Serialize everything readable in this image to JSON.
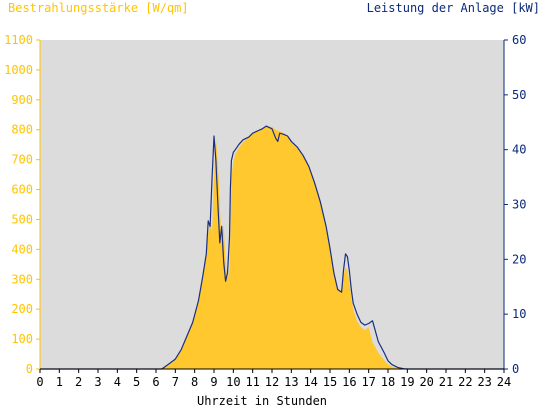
{
  "chart_data": {
    "type": "area",
    "title_left": "Bestrahlungsstärke [W/qm]",
    "title_right": "Leistung der Anlage [kW]",
    "xlabel": "Uhrzeit in Stunden",
    "grid": false,
    "x_ticks": [
      "0",
      "1",
      "2",
      "3",
      "4",
      "5",
      "6",
      "7",
      "8",
      "9",
      "10",
      "11",
      "12",
      "13",
      "14",
      "15",
      "16",
      "17",
      "18",
      "19",
      "20",
      "21",
      "22",
      "23",
      "24"
    ],
    "y_left_ticks": [
      "0",
      "100",
      "200",
      "300",
      "400",
      "500",
      "600",
      "700",
      "800",
      "900",
      "1000",
      "1100"
    ],
    "y_right_ticks": [
      "0",
      "10",
      "20",
      "30",
      "40",
      "50",
      "60"
    ],
    "ylim_left": [
      0,
      1100
    ],
    "ylim_right": [
      0,
      60
    ],
    "xlim": [
      0,
      24
    ],
    "colors": {
      "plot_bg": "#DCDCDC",
      "irradiance_fill": "#FFC82E",
      "power_line": "#1A2F7F",
      "left_axis": "#FFC400",
      "right_axis": "#0B2A7A"
    },
    "series": [
      {
        "axis": "left",
        "kind": "area",
        "x": [
          6.3,
          6.7,
          7.0,
          7.3,
          7.6,
          7.9,
          8.2,
          8.4,
          8.6,
          8.7,
          8.8,
          8.9,
          9.0,
          9.1,
          9.2,
          9.3,
          9.4,
          9.5,
          9.6,
          9.7,
          9.8,
          9.85,
          9.9,
          10.0,
          10.1,
          10.3,
          10.5,
          10.8,
          11.0,
          11.3,
          11.5,
          11.7,
          12.0,
          12.2,
          12.4,
          12.6,
          12.8,
          13.0,
          13.3,
          13.6,
          13.9,
          14.2,
          14.5,
          14.8,
          15.0,
          15.2,
          15.4,
          15.6,
          15.7,
          15.8,
          15.9,
          16.0,
          16.1,
          16.2,
          16.4,
          16.6,
          16.8,
          17.0,
          17.2,
          17.5,
          17.8,
          18.0,
          18.2,
          18.5,
          18.8,
          19.0,
          19.2
        ],
        "values": [
          0,
          15,
          30,
          60,
          110,
          160,
          230,
          300,
          370,
          450,
          500,
          460,
          640,
          770,
          690,
          550,
          420,
          480,
          360,
          300,
          330,
          450,
          640,
          690,
          720,
          740,
          760,
          775,
          790,
          800,
          805,
          810,
          810,
          800,
          795,
          790,
          775,
          760,
          740,
          710,
          680,
          630,
          560,
          480,
          400,
          320,
          270,
          260,
          310,
          340,
          330,
          290,
          240,
          200,
          160,
          140,
          130,
          140,
          90,
          55,
          30,
          15,
          8,
          3,
          1,
          0,
          0
        ]
      },
      {
        "axis": "right",
        "kind": "line",
        "x": [
          0,
          6.3,
          6.7,
          7.0,
          7.3,
          7.6,
          7.9,
          8.2,
          8.4,
          8.6,
          8.7,
          8.8,
          8.9,
          9.0,
          9.1,
          9.2,
          9.3,
          9.4,
          9.5,
          9.6,
          9.7,
          9.8,
          9.85,
          9.9,
          10.0,
          10.1,
          10.3,
          10.5,
          10.8,
          11.0,
          11.3,
          11.5,
          11.7,
          12.0,
          12.2,
          12.3,
          12.4,
          12.6,
          12.8,
          13.0,
          13.3,
          13.6,
          13.9,
          14.2,
          14.5,
          14.8,
          15.0,
          15.2,
          15.4,
          15.6,
          15.7,
          15.8,
          15.9,
          16.0,
          16.1,
          16.2,
          16.4,
          16.6,
          16.8,
          17.0,
          17.2,
          17.5,
          17.8,
          18.0,
          18.2,
          18.5,
          18.8,
          19.0,
          19.2,
          24
        ],
        "values": [
          0,
          0,
          1.0,
          1.8,
          3.5,
          6.0,
          8.5,
          12.5,
          16.5,
          21.0,
          27.0,
          26.0,
          35.0,
          42.5,
          38.0,
          30.0,
          23.0,
          26.0,
          19.5,
          16.0,
          17.5,
          24.0,
          33.0,
          38.0,
          39.5,
          40.0,
          41.0,
          41.8,
          42.3,
          43.0,
          43.5,
          43.8,
          44.3,
          43.8,
          42.0,
          41.5,
          43.0,
          42.8,
          42.5,
          41.5,
          40.5,
          39.0,
          37.0,
          34.0,
          30.5,
          26.0,
          22.0,
          17.5,
          14.5,
          14.0,
          18.0,
          21.0,
          20.5,
          18.0,
          14.5,
          12.0,
          10.0,
          8.5,
          8.0,
          8.3,
          8.8,
          5.0,
          3.0,
          1.5,
          0.8,
          0.3,
          0.05,
          0,
          0,
          0
        ]
      }
    ]
  }
}
